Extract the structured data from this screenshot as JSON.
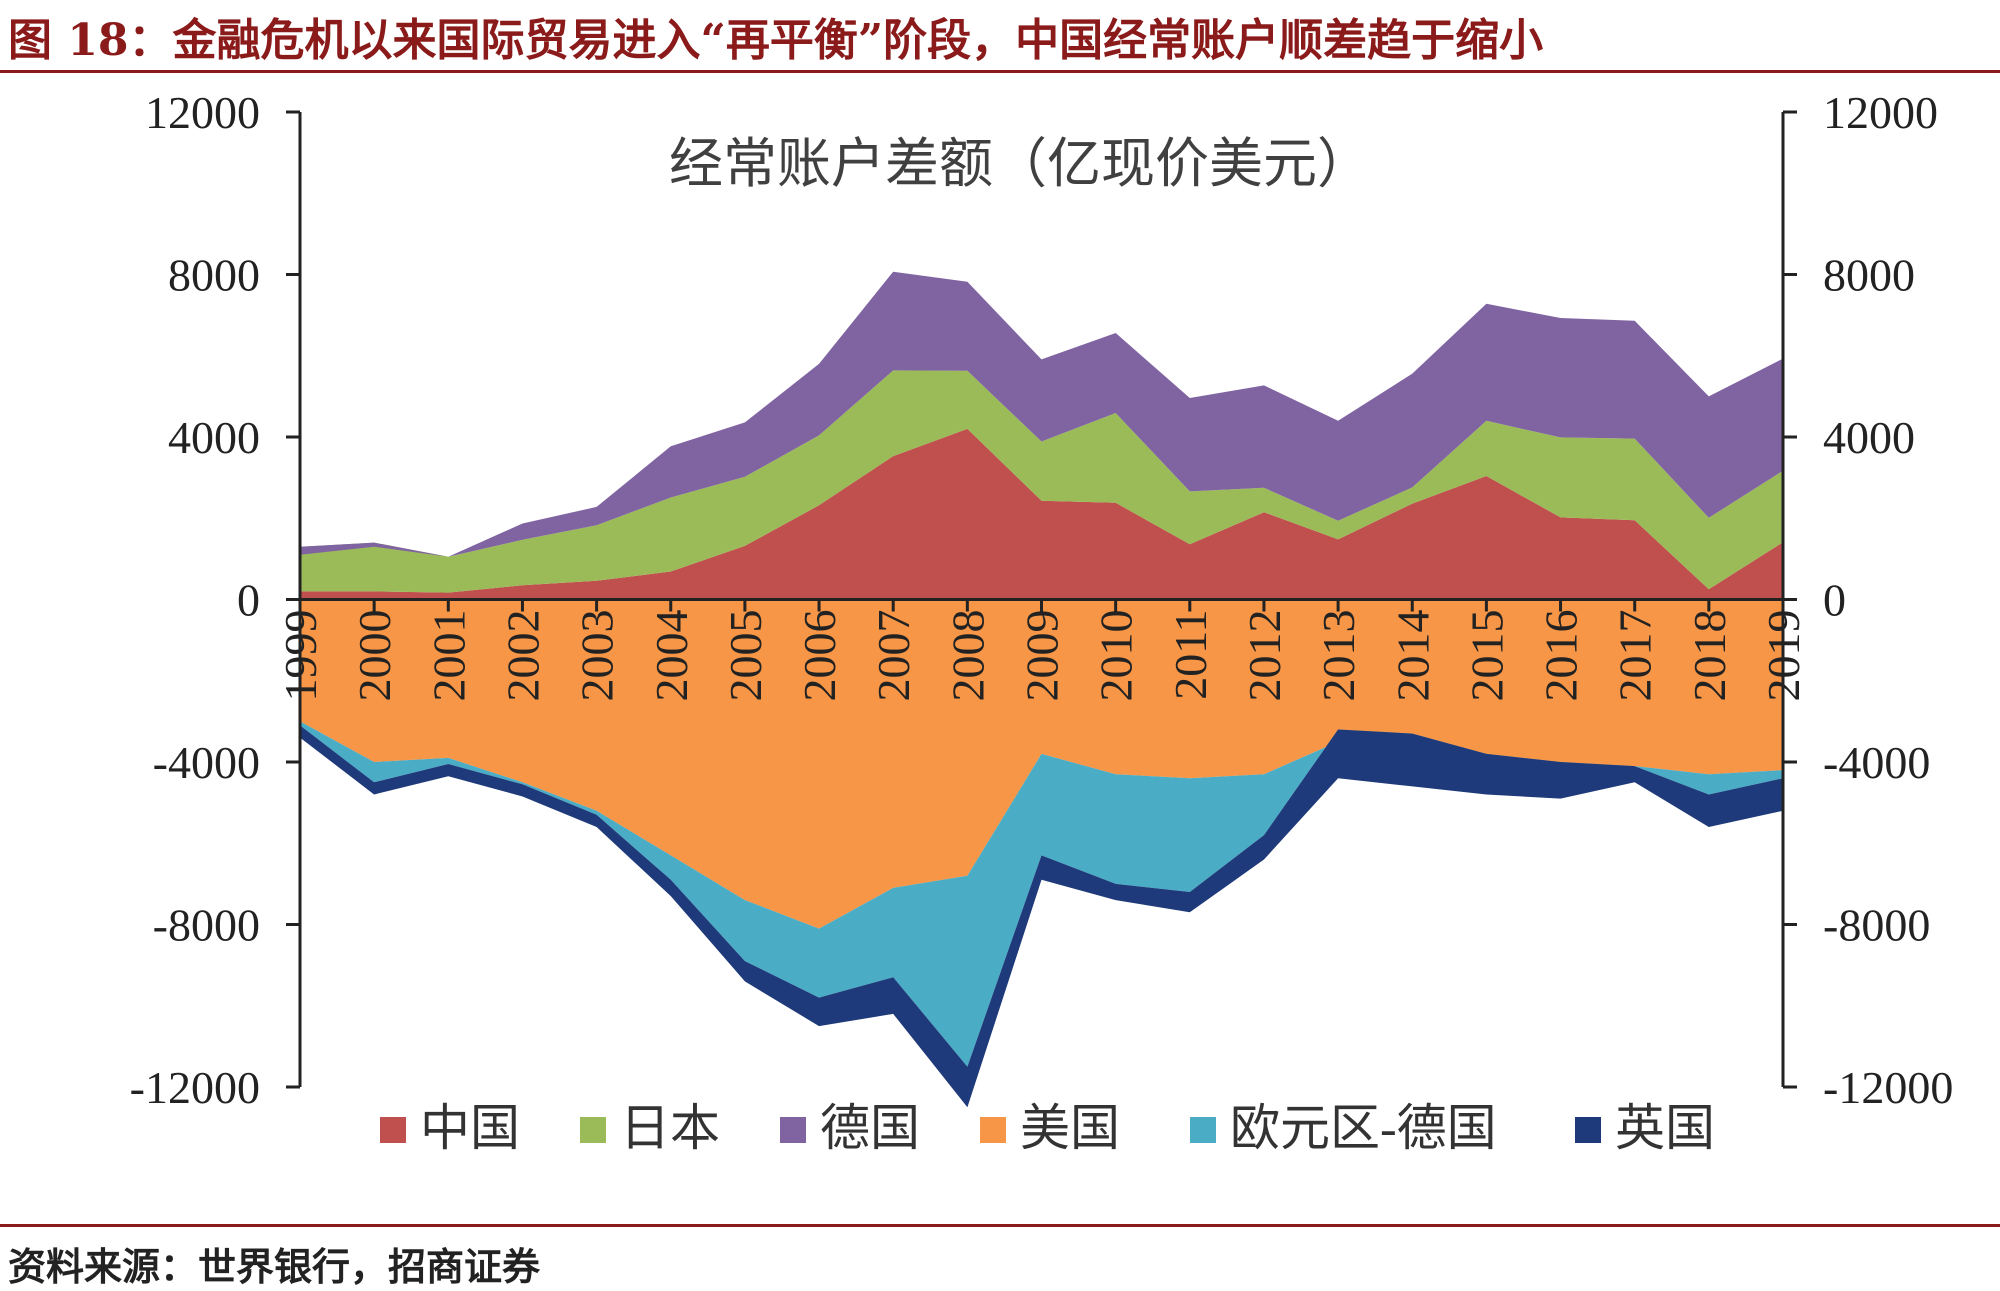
{
  "figure": {
    "title": "图 18：金融危机以来国际贸易进入“再平衡”阶段，中国经常账户顺差趋于缩小",
    "source": "资料来源：世界银行，招商证券"
  },
  "chart_data": {
    "type": "area",
    "title": "经常账户差额（亿现价美元）",
    "xlabel": "",
    "ylabel": "",
    "ylim": [
      -12000,
      12000
    ],
    "yticks": [
      12000,
      8000,
      4000,
      0,
      -4000,
      -8000,
      -12000
    ],
    "ytick_labels": [
      "12000",
      "8000",
      "4000",
      "0",
      "-4000",
      "-8000",
      "-12000"
    ],
    "right_axis": true,
    "grid": false,
    "legend_position": "bottom",
    "categories": [
      "1999",
      "2000",
      "2001",
      "2002",
      "2003",
      "2004",
      "2005",
      "2006",
      "2007",
      "2008",
      "2009",
      "2010",
      "2011",
      "2012",
      "2013",
      "2014",
      "2015",
      "2016",
      "2017",
      "2018",
      "2019"
    ],
    "positive_series": [
      {
        "name": "中国",
        "color": "#c0504d",
        "values": [
          200,
          200,
          170,
          350,
          460,
          690,
          1320,
          2320,
          3530,
          4200,
          2430,
          2380,
          1360,
          2150,
          1480,
          2360,
          3040,
          2020,
          1950,
          250,
          1410
        ]
      },
      {
        "name": "日本",
        "color": "#9bbb59",
        "values": [
          1100,
          1200,
          880,
          1120,
          1370,
          1820,
          1700,
          1720,
          2110,
          1430,
          1460,
          2210,
          1300,
          600,
          460,
          400,
          1360,
          1970,
          2010,
          1760,
          1760
        ]
      },
      {
        "name": "德国",
        "color": "#8064a2",
        "values": [
          -200,
          -100,
          0,
          400,
          450,
          1260,
          1340,
          1760,
          2430,
          2190,
          2020,
          1970,
          2300,
          2520,
          2460,
          2800,
          2880,
          2940,
          2900,
          2990,
          2760
        ]
      }
    ],
    "negative_series": [
      {
        "name": "美国",
        "color": "#f79646",
        "values": [
          -3000,
          -4000,
          -3900,
          -4500,
          -5200,
          -6300,
          -7400,
          -8100,
          -7100,
          -6800,
          -3800,
          -4300,
          -4400,
          -4300,
          -3500,
          -3700,
          -4100,
          -4300,
          -4100,
          -4300,
          -4200
        ]
      },
      {
        "name": "欧元区-德国",
        "color": "#4bacc6",
        "values": [
          -100,
          -500,
          -150,
          -50,
          -100,
          -600,
          -1500,
          -1700,
          -2200,
          -4700,
          -2500,
          -2700,
          -2800,
          -1500,
          300,
          400,
          300,
          300,
          0,
          -500,
          -200
        ]
      },
      {
        "name": "英国",
        "color": "#1f3a7a",
        "values": [
          -300,
          -300,
          -300,
          -300,
          -300,
          -400,
          -500,
          -700,
          -900,
          -1000,
          -600,
          -400,
          -500,
          -600,
          -1200,
          -1300,
          -1000,
          -900,
          -400,
          -800,
          -800
        ]
      }
    ],
    "legend": [
      "中国",
      "日本",
      "德国",
      "美国",
      "欧元区-德国",
      "英国"
    ]
  }
}
